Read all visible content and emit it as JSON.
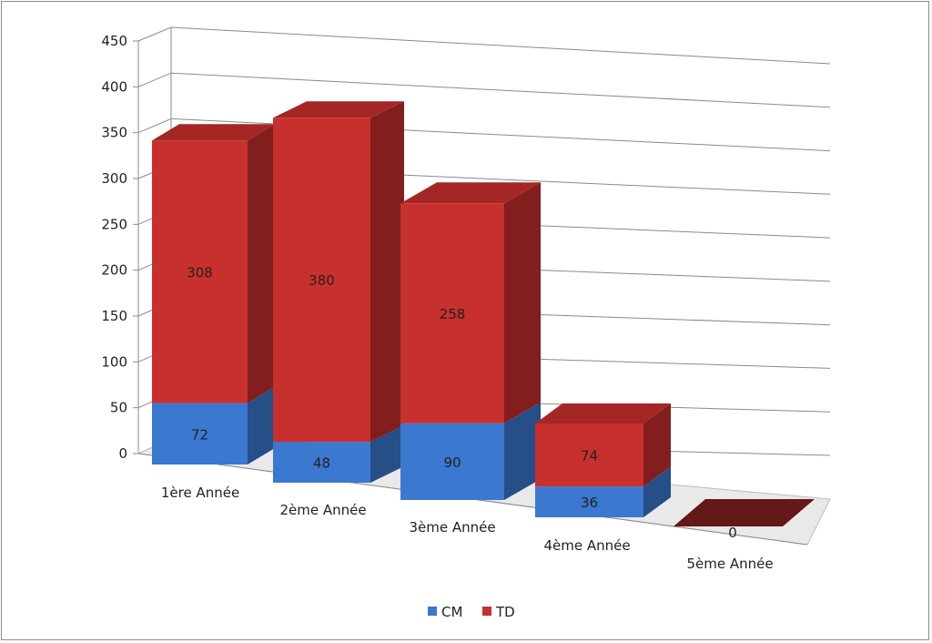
{
  "chart_data": {
    "type": "bar",
    "stacked": true,
    "three_d": true,
    "title": "",
    "xlabel": "",
    "ylabel": "",
    "ylim": [
      0,
      450
    ],
    "yticks": [
      "0",
      "50",
      "100",
      "150",
      "200",
      "250",
      "300",
      "350",
      "400",
      "450"
    ],
    "grid": true,
    "legend_position": "bottom",
    "categories": [
      "1ère Année",
      "2ème Année",
      "3ème Année",
      "4ème Année",
      "5ème Année"
    ],
    "series": [
      {
        "name": "CM",
        "values": [
          72,
          48,
          90,
          36,
          0
        ],
        "color": "#3b78cf"
      },
      {
        "name": "TD",
        "values": [
          308,
          380,
          258,
          74,
          0
        ],
        "color": "#c8302e"
      }
    ],
    "data_labels": {
      "CM": [
        "72",
        "48",
        "90",
        "36",
        ""
      ],
      "TD": [
        "308",
        "380",
        "258",
        "74",
        "0"
      ]
    }
  }
}
